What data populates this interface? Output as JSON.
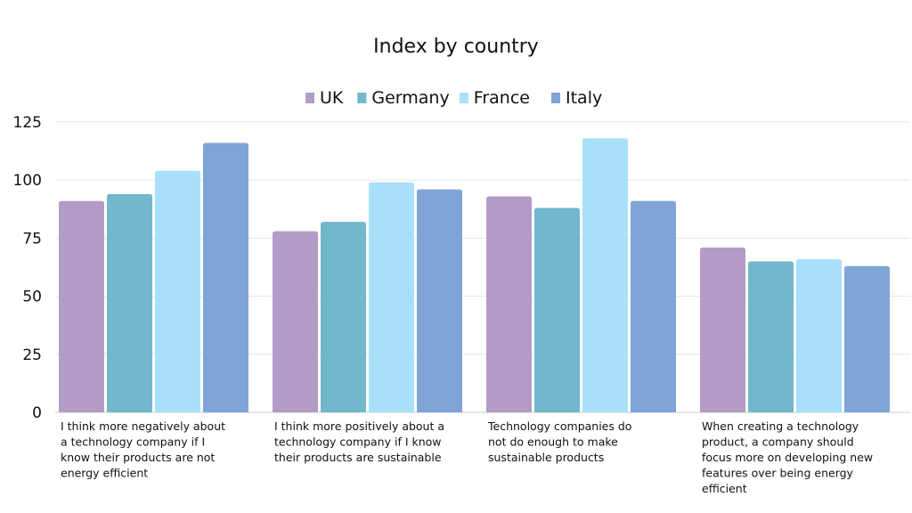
{
  "chart_data": {
    "type": "bar",
    "title": "Index by country",
    "xlabel": "",
    "ylabel": "",
    "ylim": [
      0,
      125
    ],
    "yticks": [
      0,
      25,
      50,
      75,
      100,
      125
    ],
    "grid": true,
    "legend_position": "top-center",
    "categories": [
      "I think more negatively about a technology company if I know their products are not energy efficient",
      "I think more positively about a technology company if I know their products are sustainable",
      "Technology companies do not do enough to make sustainable products",
      "When creating a technology product, a company should focus more on developing new features over being energy efficient"
    ],
    "category_lines": [
      [
        "I think more negatively about",
        "a technology company if I",
        "know their products are not",
        "energy efficient"
      ],
      [
        "I think more positively about a",
        "technology company if I know",
        "their products are sustainable"
      ],
      [
        "Technology companies do",
        "not do enough to make",
        "sustainable products"
      ],
      [
        "When creating a technology",
        "product, a company should",
        "focus more on developing new",
        "features over being energy",
        "efficient"
      ]
    ],
    "series": [
      {
        "name": "UK",
        "color": "#b39bc8",
        "values": [
          91,
          78,
          93,
          71
        ]
      },
      {
        "name": "Germany",
        "color": "#72b7cc",
        "values": [
          94,
          82,
          88,
          65
        ]
      },
      {
        "name": "France",
        "color": "#a8e0fa",
        "values": [
          104,
          99,
          118,
          66
        ]
      },
      {
        "name": "Italy",
        "color": "#7fa5d6",
        "values": [
          116,
          96,
          91,
          63
        ]
      }
    ]
  }
}
